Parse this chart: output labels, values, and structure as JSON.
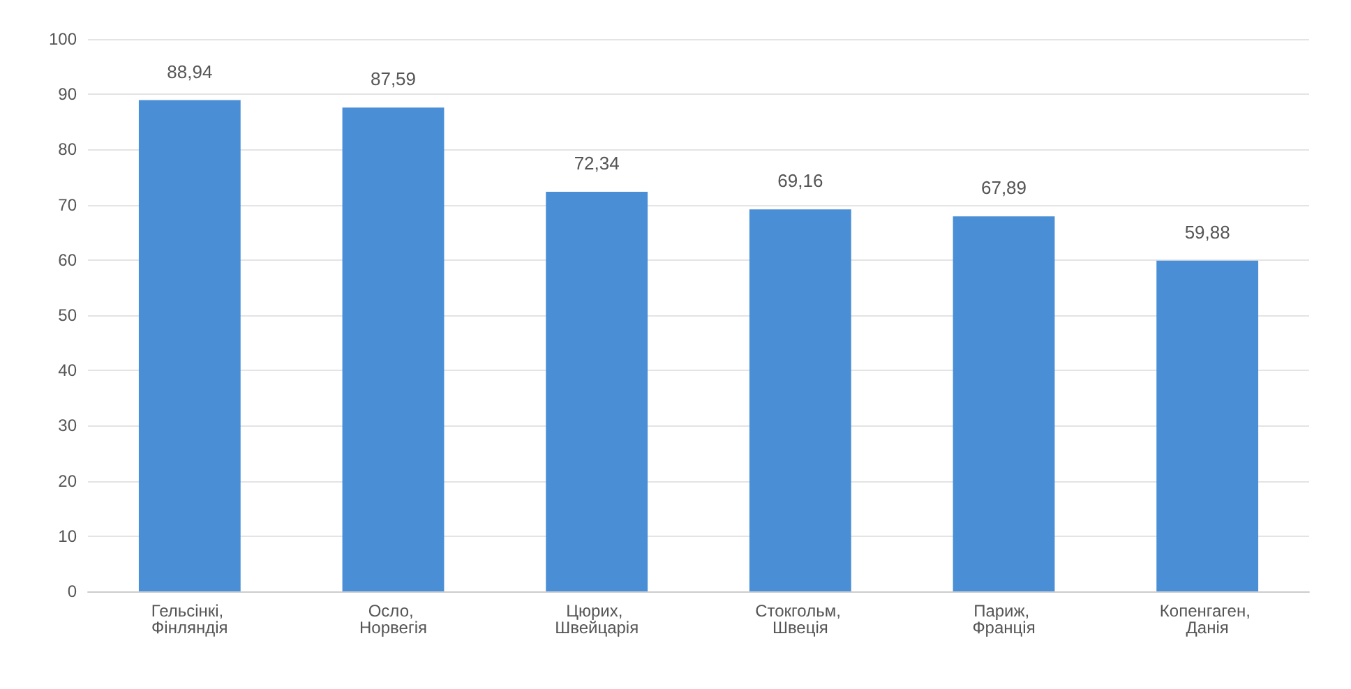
{
  "chart_data": {
    "type": "bar",
    "categories": [
      "Гельсінкі, Фінляндія",
      "Осло, Норвегія",
      "Цюрих, Швейцарія",
      "Стокгольм, Швеція",
      "Париж, Франція",
      "Копенгаген, Данія"
    ],
    "values": [
      88.94,
      87.59,
      72.34,
      69.16,
      67.89,
      59.88
    ],
    "value_labels": [
      "88,94",
      "87,59",
      "72,34",
      "69,16",
      "67,89",
      "59,88"
    ],
    "color": "#4a8fd6",
    "ylim": [
      0,
      100
    ],
    "yticks": [
      0,
      10,
      20,
      30,
      40,
      50,
      60,
      70,
      80,
      90,
      100
    ],
    "grid": "y"
  }
}
